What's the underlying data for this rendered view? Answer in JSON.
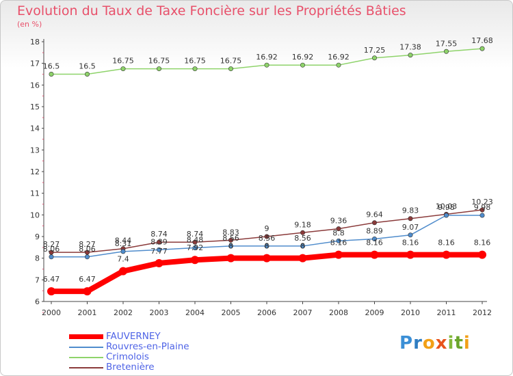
{
  "chart_data": {
    "type": "line",
    "title": "Evolution du Taux de Taxe Foncière sur les Propriétés Bâties",
    "ylabel": "(en %)",
    "xlabel": "",
    "ylim": [
      6,
      18
    ],
    "yticks": [
      "6",
      "7",
      "8",
      "9",
      "10",
      "11",
      "12",
      "13",
      "14",
      "15",
      "16",
      "17",
      "18"
    ],
    "categories": [
      "2000",
      "2001",
      "2002",
      "2003",
      "2004",
      "2005",
      "2006",
      "2007",
      "2008",
      "2009",
      "2010",
      "2011",
      "2012"
    ],
    "series": [
      {
        "name": "FAUVERNEY",
        "color": "#ff0000",
        "values": [
          6.47,
          6.47,
          7.4,
          7.77,
          7.92,
          8,
          8,
          8,
          8.16,
          8.16,
          8.16,
          8.16,
          8.16
        ],
        "labels": [
          "6.47",
          "6.47",
          "7.4",
          "7.77",
          "7.92",
          "8",
          "8",
          "8",
          "8.16",
          "8.16",
          "8.16",
          "8.16",
          "8.16"
        ]
      },
      {
        "name": "Rouvres-en-Plaine",
        "color": "#4f8ccc",
        "values": [
          8.06,
          8.06,
          8.31,
          8.39,
          8.48,
          8.56,
          8.56,
          8.56,
          8.8,
          8.89,
          9.07,
          9.98,
          9.98
        ],
        "labels": [
          "8.06",
          "8.06",
          "8.31",
          "8.39",
          "8.48",
          "8.56",
          "8.56",
          "8.56",
          "8.8",
          "8.89",
          "9.07",
          "9.98",
          "9.98"
        ]
      },
      {
        "name": "Crimolois",
        "color": "#8ed36a",
        "values": [
          16.5,
          16.5,
          16.75,
          16.75,
          16.75,
          16.75,
          16.92,
          16.92,
          16.92,
          17.25,
          17.38,
          17.55,
          17.68
        ],
        "labels": [
          "16.5",
          "16.5",
          "16.75",
          "16.75",
          "16.75",
          "16.75",
          "16.92",
          "16.92",
          "16.92",
          "17.25",
          "17.38",
          "17.55",
          "17.68"
        ]
      },
      {
        "name": "Bretenière",
        "color": "#8a3a3a",
        "values": [
          8.27,
          8.27,
          8.44,
          8.74,
          8.74,
          8.83,
          9,
          9.18,
          9.36,
          9.64,
          9.83,
          10.03,
          10.23
        ],
        "labels": [
          "8.27",
          "8.27",
          "8.44",
          "8.74",
          "8.74",
          "8.83",
          "9",
          "9.18",
          "9.36",
          "9.64",
          "9.83",
          "10.03",
          "10.23"
        ]
      }
    ],
    "legend_position": "bottom-left",
    "grid": false
  },
  "brand": {
    "letters": [
      "P",
      "r",
      "o",
      "x",
      "i",
      "t",
      "i"
    ],
    "colors": [
      "#3b8fd6",
      "#2f7dc2",
      "#f2a017",
      "#e8541c",
      "#84b83a",
      "#6aa52c",
      "#f2a017"
    ]
  }
}
